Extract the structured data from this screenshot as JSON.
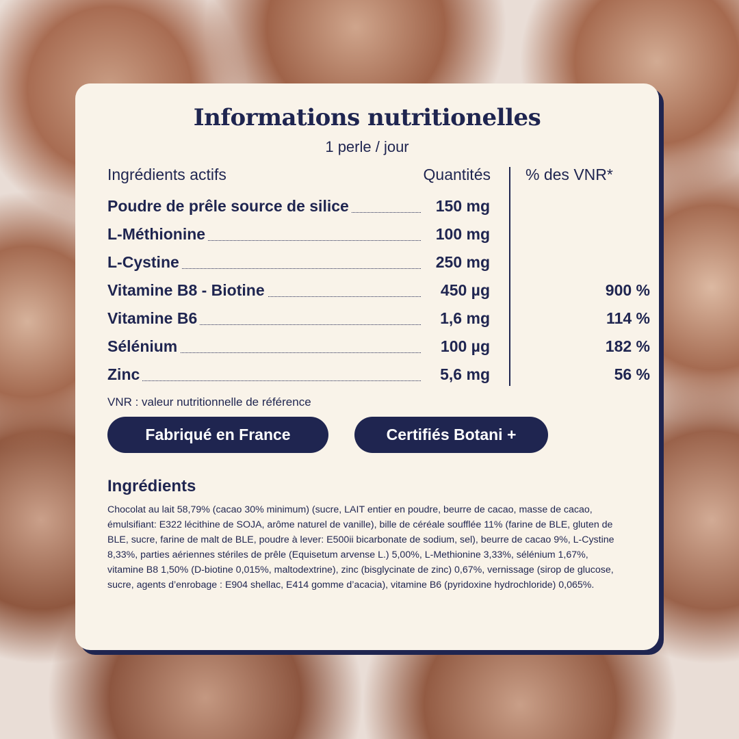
{
  "title": "Informations nutritionelles",
  "subtitle": "1 perle / jour",
  "headers": {
    "ingredients": "Ingrédients actifs",
    "quantity": "Quantités",
    "vnr": "% des VNR*"
  },
  "rows": [
    {
      "name": "Poudre de prêle source de silice",
      "qty": "150 mg",
      "vnr": ""
    },
    {
      "name": "L-Méthionine",
      "qty": "100 mg",
      "vnr": ""
    },
    {
      "name": "L-Cystine",
      "qty": "250 mg",
      "vnr": ""
    },
    {
      "name": "Vitamine B8 - Biotine",
      "qty": "450 µg",
      "vnr": "900 %"
    },
    {
      "name": "Vitamine B6",
      "qty": "1,6 mg",
      "vnr": "114 %"
    },
    {
      "name": "Sélénium",
      "qty": "100 µg",
      "vnr": "182 %"
    },
    {
      "name": "Zinc",
      "qty": "5,6 mg",
      "vnr": "56 %"
    }
  ],
  "note": "VNR : valeur nutritionnelle de référence",
  "badges": [
    "Fabriqué en France",
    "Certifiés Botani +"
  ],
  "ingredients_title": "Ingrédients",
  "ingredients_text": "Chocolat au lait 58,79% (cacao 30% minimum) (sucre, LAIT entier en poudre, beurre de cacao, masse de cacao, émulsifiant: E322 lécithine de SOJA, arôme naturel de vanille), bille de céréale soufflée 11% (farine de BLE, gluten de BLE, sucre, farine de malt de BLE, poudre à lever: E500ii bicarbonate de sodium, sel), beurre de cacao 9%, L-Cystine 8,33%, parties aériennes stériles de prêle (Equisetum arvense L.) 5,00%, L-Methionine 3,33%, sélénium 1,67%, vitamine B8 1,50% (D-biotine 0,015%, maltodextrine), zinc (bisglycinate de zinc) 0,67%, vernissage (sirop de glucose, sucre, agents d’enrobage : E904 shellac, E414 gomme d’acacia), vitamine B6 (pyridoxine hydrochloride) 0,065%.",
  "colors": {
    "navy": "#1f2550",
    "card": "#f9f3e9"
  }
}
